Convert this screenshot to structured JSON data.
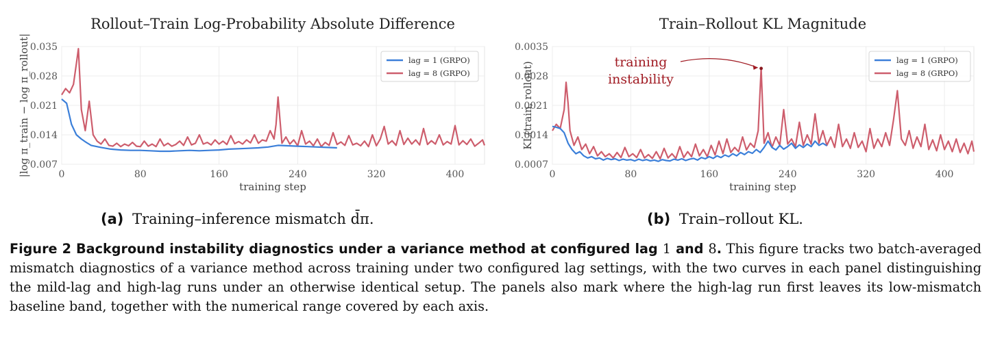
{
  "chart_data": [
    {
      "type": "line",
      "title": "Rollout–Train Log-Probability Absolute Difference",
      "xlabel": "training step",
      "ylabel": "|log π_train − log π_rollout|",
      "xlim": [
        0,
        430
      ],
      "ylim": [
        0.007,
        0.035
      ],
      "xticks": [
        "0",
        "80",
        "160",
        "240",
        "320",
        "400"
      ],
      "yticks": [
        "0.007",
        "0.014",
        "0.021",
        "0.028",
        "0.035"
      ],
      "grid": true,
      "legend_position": "top-right",
      "series": [
        {
          "name": "lag = 1 (GRPO)",
          "color": "#3b7fd9",
          "x": [
            0,
            5,
            10,
            15,
            20,
            25,
            30,
            40,
            50,
            60,
            70,
            80,
            90,
            100,
            110,
            120,
            130,
            140,
            150,
            160,
            170,
            180,
            190,
            200,
            210,
            220,
            230,
            240,
            250,
            260,
            270,
            280
          ],
          "y": [
            0.0225,
            0.0215,
            0.0165,
            0.014,
            0.013,
            0.0122,
            0.0115,
            0.011,
            0.0106,
            0.0104,
            0.0103,
            0.0103,
            0.0102,
            0.0101,
            0.0101,
            0.0102,
            0.0103,
            0.0102,
            0.0103,
            0.0104,
            0.0106,
            0.0107,
            0.0108,
            0.0109,
            0.0111,
            0.0115,
            0.0114,
            0.0113,
            0.0112,
            0.0111,
            0.011,
            0.0109
          ]
        },
        {
          "name": "lag = 8 (GRPO)",
          "color": "#cd5d6c",
          "x": [
            0,
            4,
            8,
            12,
            15,
            17,
            20,
            24,
            28,
            32,
            36,
            40,
            44,
            48,
            52,
            56,
            60,
            64,
            68,
            72,
            76,
            80,
            84,
            88,
            92,
            96,
            100,
            104,
            108,
            112,
            116,
            120,
            124,
            128,
            132,
            136,
            140,
            144,
            148,
            152,
            156,
            160,
            164,
            168,
            172,
            176,
            180,
            184,
            188,
            192,
            196,
            200,
            204,
            208,
            212,
            216,
            218,
            220,
            224,
            228,
            232,
            236,
            240,
            244,
            248,
            252,
            256,
            260,
            264,
            268,
            272,
            276,
            280,
            284,
            288,
            292,
            296,
            300,
            304,
            308,
            312,
            316,
            320,
            324,
            328,
            332,
            336,
            340,
            344,
            348,
            352,
            356,
            360,
            364,
            368,
            372,
            376,
            380,
            384,
            388,
            392,
            396,
            400,
            404,
            408,
            412,
            416,
            420,
            424,
            428,
            430
          ],
          "y": [
            0.0235,
            0.025,
            0.024,
            0.026,
            0.031,
            0.0345,
            0.02,
            0.015,
            0.022,
            0.014,
            0.0125,
            0.0118,
            0.013,
            0.0115,
            0.0113,
            0.012,
            0.0112,
            0.0118,
            0.0114,
            0.0122,
            0.0113,
            0.0112,
            0.0125,
            0.0113,
            0.0118,
            0.0112,
            0.013,
            0.0114,
            0.012,
            0.0113,
            0.0117,
            0.0125,
            0.0115,
            0.0135,
            0.0116,
            0.012,
            0.014,
            0.0118,
            0.0122,
            0.0116,
            0.0128,
            0.0118,
            0.0125,
            0.0117,
            0.0138,
            0.0119,
            0.0124,
            0.0118,
            0.0128,
            0.0121,
            0.014,
            0.012,
            0.0128,
            0.0125,
            0.015,
            0.013,
            0.0165,
            0.023,
            0.012,
            0.0135,
            0.0118,
            0.0128,
            0.0114,
            0.015,
            0.0118,
            0.0125,
            0.0114,
            0.013,
            0.0112,
            0.0122,
            0.0115,
            0.0145,
            0.0117,
            0.0123,
            0.0115,
            0.0138,
            0.0116,
            0.012,
            0.0114,
            0.0125,
            0.0112,
            0.014,
            0.0114,
            0.013,
            0.016,
            0.0118,
            0.0126,
            0.0115,
            0.015,
            0.0117,
            0.0132,
            0.0118,
            0.0128,
            0.0116,
            0.0155,
            0.0117,
            0.0126,
            0.0118,
            0.014,
            0.0116,
            0.0124,
            0.0118,
            0.0162,
            0.0116,
            0.0126,
            0.0117,
            0.013,
            0.0113,
            0.012,
            0.0128,
            0.0115
          ]
        }
      ]
    },
    {
      "type": "line",
      "title": "Train–Rollout KL Magnitude",
      "xlabel": "training step",
      "ylabel": "KL(train, rollout)",
      "xlim": [
        0,
        430
      ],
      "ylim": [
        0.0007,
        0.0035
      ],
      "xticks": [
        "0",
        "80",
        "160",
        "240",
        "320",
        "400"
      ],
      "yticks": [
        "0.0007",
        "0.0014",
        "0.0021",
        "0.0028",
        "0.0035"
      ],
      "grid": true,
      "legend_position": "top-right",
      "annotations": [
        {
          "text_lines": [
            "training",
            "instability"
          ],
          "point": {
            "x": 213,
            "y": 0.00298
          }
        }
      ],
      "series": [
        {
          "name": "lag = 1 (GRPO)",
          "color": "#3b7fd9",
          "x": [
            0,
            4,
            8,
            12,
            16,
            20,
            24,
            28,
            32,
            36,
            40,
            44,
            48,
            52,
            56,
            60,
            64,
            68,
            72,
            76,
            80,
            84,
            88,
            92,
            96,
            100,
            104,
            108,
            112,
            116,
            120,
            124,
            128,
            132,
            136,
            140,
            144,
            148,
            152,
            156,
            160,
            164,
            168,
            172,
            176,
            180,
            184,
            188,
            192,
            196,
            200,
            204,
            208,
            212,
            216,
            220,
            224,
            228,
            232,
            236,
            240,
            244,
            248,
            252,
            256,
            260,
            264,
            268,
            272,
            276,
            280
          ],
          "y": [
            0.0016,
            0.00158,
            0.00155,
            0.00145,
            0.0012,
            0.00105,
            0.00095,
            0.001,
            0.0009,
            0.00085,
            0.00088,
            0.00083,
            0.00085,
            0.0008,
            0.00084,
            0.00081,
            0.00083,
            0.00079,
            0.00082,
            0.0008,
            0.00081,
            0.00078,
            0.00082,
            0.00079,
            0.00081,
            0.00078,
            0.0008,
            0.00077,
            0.00081,
            0.00079,
            0.00078,
            0.00082,
            0.0008,
            0.00083,
            0.00079,
            0.00082,
            0.00084,
            0.0008,
            0.00086,
            0.00083,
            0.00088,
            0.00084,
            0.0009,
            0.00086,
            0.00092,
            0.00088,
            0.00095,
            0.0009,
            0.00098,
            0.00093,
            0.001,
            0.00096,
            0.00105,
            0.00098,
            0.0011,
            0.00125,
            0.0011,
            0.00104,
            0.00115,
            0.00106,
            0.00112,
            0.0012,
            0.00108,
            0.00116,
            0.0011,
            0.00118,
            0.00112,
            0.00125,
            0.00115,
            0.0012,
            0.00114
          ]
        },
        {
          "name": "lag = 8 (GRPO)",
          "color": "#cd5d6c",
          "x": [
            0,
            4,
            8,
            12,
            14,
            16,
            18,
            22,
            26,
            30,
            34,
            38,
            42,
            46,
            50,
            54,
            58,
            62,
            66,
            70,
            74,
            78,
            82,
            86,
            90,
            94,
            98,
            102,
            106,
            110,
            114,
            118,
            122,
            126,
            130,
            134,
            138,
            142,
            146,
            150,
            154,
            158,
            162,
            166,
            170,
            174,
            178,
            182,
            186,
            190,
            194,
            198,
            202,
            206,
            210,
            213,
            216,
            220,
            224,
            228,
            232,
            236,
            240,
            244,
            248,
            252,
            256,
            260,
            264,
            268,
            272,
            276,
            280,
            284,
            288,
            292,
            296,
            300,
            304,
            308,
            312,
            316,
            320,
            324,
            328,
            332,
            336,
            340,
            344,
            348,
            352,
            356,
            360,
            364,
            368,
            372,
            376,
            380,
            384,
            388,
            392,
            396,
            400,
            404,
            408,
            412,
            416,
            420,
            424,
            428,
            430
          ],
          "y": [
            0.0015,
            0.00165,
            0.00155,
            0.002,
            0.00265,
            0.00215,
            0.0015,
            0.00115,
            0.00135,
            0.00105,
            0.00118,
            0.00095,
            0.00112,
            0.0009,
            0.001,
            0.00088,
            0.00095,
            0.00085,
            0.00098,
            0.00086,
            0.0011,
            0.00088,
            0.00095,
            0.00086,
            0.00105,
            0.00085,
            0.00093,
            0.00084,
            0.001,
            0.00083,
            0.00108,
            0.00085,
            0.00095,
            0.00084,
            0.00112,
            0.00086,
            0.001,
            0.00088,
            0.00118,
            0.0009,
            0.00105,
            0.00088,
            0.00115,
            0.00092,
            0.00125,
            0.00095,
            0.0013,
            0.00098,
            0.0011,
            0.001,
            0.00135,
            0.00104,
            0.0012,
            0.0011,
            0.0015,
            0.00298,
            0.0012,
            0.00145,
            0.0011,
            0.00135,
            0.00115,
            0.002,
            0.00118,
            0.0013,
            0.00112,
            0.0017,
            0.00115,
            0.0014,
            0.00118,
            0.0019,
            0.0012,
            0.0015,
            0.00115,
            0.00135,
            0.0011,
            0.00165,
            0.00112,
            0.0013,
            0.00108,
            0.00145,
            0.0011,
            0.00125,
            0.001,
            0.00155,
            0.00108,
            0.0013,
            0.00112,
            0.00145,
            0.00115,
            0.00175,
            0.00245,
            0.0013,
            0.00115,
            0.0015,
            0.00108,
            0.00135,
            0.00112,
            0.00165,
            0.00105,
            0.00128,
            0.00102,
            0.0014,
            0.00105,
            0.00125,
            0.001,
            0.0013,
            0.00098,
            0.0012,
            0.00095,
            0.00125,
            0.001
          ]
        }
      ]
    }
  ],
  "subcaptions": {
    "a": {
      "label": "(a)",
      "text": "Training–inference mismatch d̄π."
    },
    "b": {
      "label": "(b)",
      "text": "Train–rollout KL."
    }
  },
  "caption": {
    "lead_part1": "Figure 2  Background instability diagnostics under a variance method at configured lag ",
    "lead_num1": "1",
    "lead_part2": " and ",
    "lead_num2": "8",
    "lead_part3": ".",
    "body": " This figure tracks two batch-averaged mismatch diagnostics of a variance method across training under two configured lag settings, with the two curves in each panel distinguishing the mild-lag and high-lag runs under an otherwise identical setup. The panels also mark where the high-lag run first leaves its low-mismatch baseline band, together with the numerical range covered by each axis."
  }
}
